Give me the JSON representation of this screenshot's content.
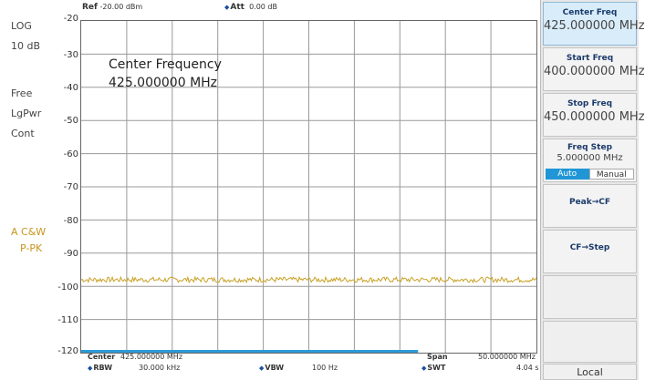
{
  "left_panel": {
    "scale_type": "LOG",
    "scale_div": "10 dB",
    "trigger": "Free",
    "detector": "LgPwr",
    "sweep_mode": "Cont",
    "trace_label": "A C&W",
    "trace_mode": "P-PK"
  },
  "top_info": {
    "ref_label": "Ref",
    "ref_value": "-20.00 dBm",
    "att_label": "Att",
    "att_value": "0.00 dB"
  },
  "y_axis": {
    "ticks": [
      "-20",
      "-30",
      "-40",
      "-50",
      "-60",
      "-70",
      "-80",
      "-90",
      "-100",
      "-110",
      "-120"
    ]
  },
  "marker": {
    "title": "Center Frequency",
    "value": "425.000000 MHz"
  },
  "bottom_info": {
    "center_label": "Center",
    "center_value": "425.000000 MHz",
    "span_label": "Span",
    "span_value": "50.000000 MHz",
    "rbw_label": "RBW",
    "rbw_value": "30.000 kHz",
    "vbw_label": "VBW",
    "vbw_value": "100 Hz",
    "swt_label": "SWT",
    "swt_value": "4.04 s"
  },
  "softkeys": {
    "center_freq": {
      "title": "Center Freq",
      "value": "425.000000 MHz"
    },
    "start_freq": {
      "title": "Start Freq",
      "value": "400.000000 MHz"
    },
    "stop_freq": {
      "title": "Stop Freq",
      "value": "450.000000 MHz"
    },
    "freq_step": {
      "title": "Freq Step",
      "value": "5.000000 MHz",
      "auto": "Auto",
      "manual": "Manual"
    },
    "peak_cf": "Peak→CF",
    "cf_step": "CF→Step",
    "local": "Local"
  },
  "colors": {
    "trace": "#c9a227",
    "progress": "#2a9bd8",
    "active_key": "#d8ecfa"
  },
  "chart_data": {
    "type": "line",
    "x_range_mhz": [
      400,
      450
    ],
    "ylim": [
      -120,
      -20
    ],
    "y_unit": "dBm",
    "grid": true,
    "series": [
      {
        "x": [
          400,
          412.5,
          425,
          437.5,
          450
        ],
        "y": [
          -98,
          -98,
          -98,
          -98,
          -98
        ]
      }
    ]
  }
}
